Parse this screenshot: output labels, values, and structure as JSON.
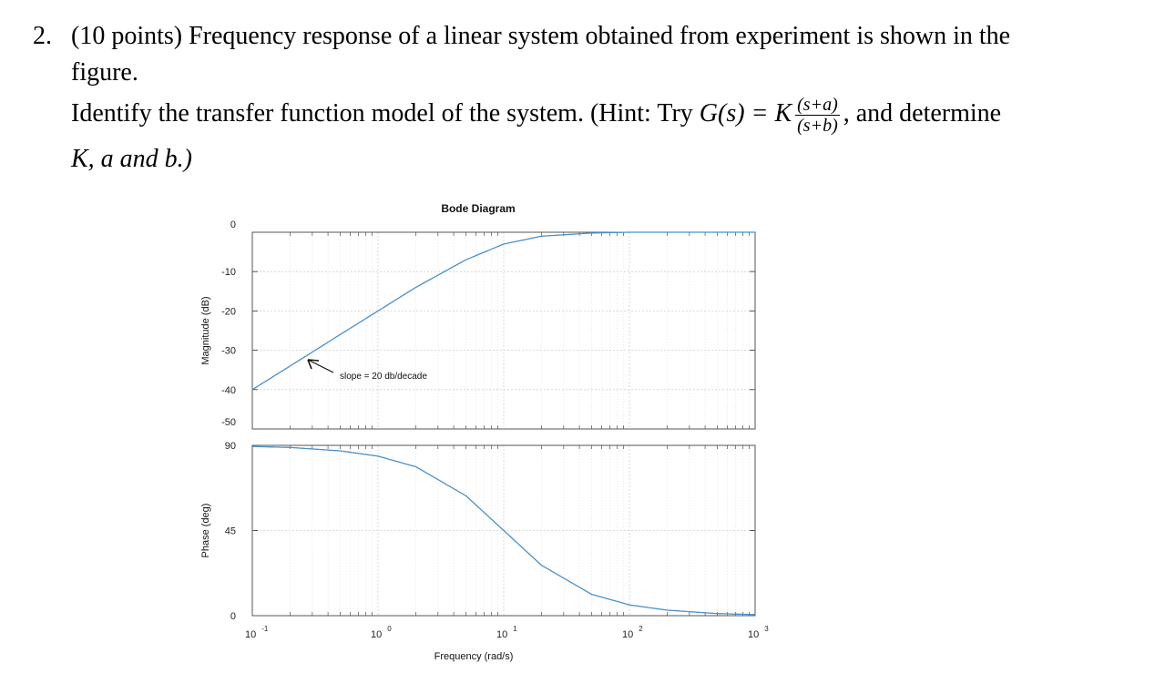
{
  "problem": {
    "number": "2.",
    "intro": "(10 points) Frequency response of a linear system obtained from experiment is shown in the",
    "intro_cont": "figure.",
    "task": "Identify the transfer function model of the system. (Hint: Try ",
    "g_of_s": "G(s) = K",
    "frac_num": "(s+a)",
    "frac_den": "(s+b)",
    "task_end": ", and determine",
    "line4": "K, a and b.)"
  },
  "chart_data": {
    "type": "line",
    "title": "Bode Diagram",
    "xlabel": "Frequency  (rad/s)",
    "x_scale": "log",
    "xlim": [
      0.1,
      1000
    ],
    "x_ticks": [
      {
        "base": "10",
        "exp": "-1"
      },
      {
        "base": "10",
        "exp": "0"
      },
      {
        "base": "10",
        "exp": "1"
      },
      {
        "base": "10",
        "exp": "2"
      },
      {
        "base": "10",
        "exp": "3"
      }
    ],
    "grid": true,
    "panels": [
      {
        "ylabel": "Magnitude (dB)",
        "ylim": [
          -50,
          0
        ],
        "yticks": [
          "0",
          "-10",
          "-20",
          "-30",
          "-40",
          "-50"
        ],
        "x": [
          0.1,
          0.2,
          0.5,
          1,
          2,
          5,
          10,
          20,
          50,
          100,
          200,
          500,
          1000
        ],
        "y": [
          -40,
          -34,
          -26,
          -20,
          -14,
          -7,
          -3,
          -1,
          -0.2,
          0,
          0,
          0,
          0
        ],
        "annotation": "slope = 20 db/decade"
      },
      {
        "ylabel": "Phase (deg)",
        "ylim": [
          0,
          90
        ],
        "yticks": [
          "90",
          "45",
          "0"
        ],
        "x": [
          0.1,
          0.2,
          0.5,
          1,
          2,
          5,
          10,
          20,
          50,
          100,
          200,
          500,
          1000
        ],
        "y": [
          89.4,
          88.9,
          87.1,
          84.3,
          78.7,
          63.4,
          45,
          26.6,
          11.3,
          5.7,
          2.9,
          1.1,
          0.6
        ]
      }
    ]
  }
}
